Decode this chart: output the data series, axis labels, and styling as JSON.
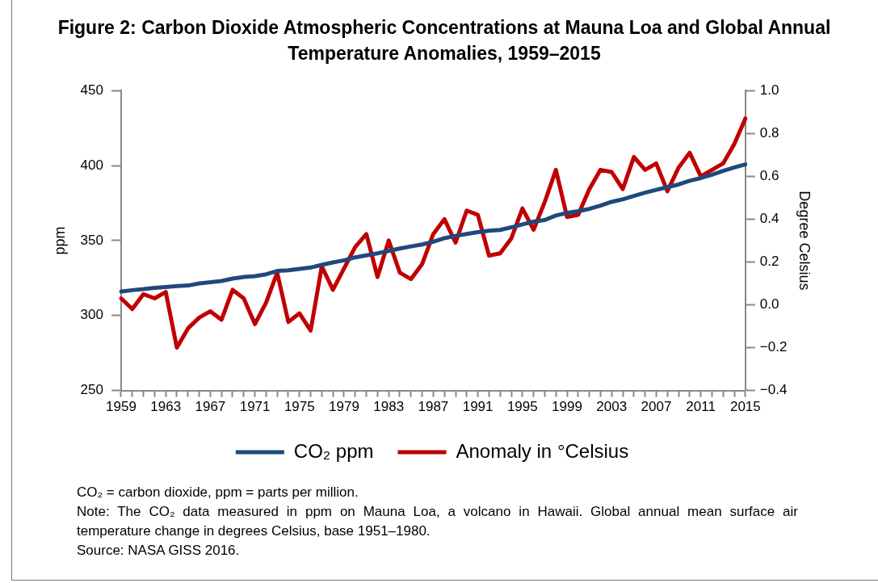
{
  "chart_data": {
    "type": "line",
    "title": "Figure 2: Carbon Dioxide Atmospheric Concentrations at Mauna Loa and Global Annual Temperature Anomalies, 1959–2015",
    "categories": [
      "1959",
      null,
      null,
      null,
      "1963",
      null,
      null,
      null,
      "1967",
      null,
      null,
      null,
      "1971",
      null,
      null,
      null,
      "1975",
      null,
      null,
      null,
      "1979",
      null,
      null,
      null,
      "1983",
      null,
      null,
      null,
      "1987",
      null,
      null,
      null,
      "1991",
      null,
      null,
      null,
      "1995",
      null,
      null,
      null,
      "1999",
      null,
      null,
      null,
      "2003",
      null,
      null,
      null,
      "2007",
      null,
      null,
      null,
      "2011",
      null,
      null,
      null,
      "2015"
    ],
    "series": [
      {
        "name": "CO₂ ppm",
        "color": "#1f497d",
        "values": [
          316.0,
          316.9,
          317.6,
          318.5,
          319.0,
          319.6,
          320.0,
          321.4,
          322.2,
          323.0,
          324.6,
          325.7,
          326.3,
          327.5,
          329.7,
          330.2,
          331.1,
          332.0,
          333.8,
          335.4,
          336.8,
          338.8,
          340.1,
          341.5,
          343.1,
          344.7,
          346.1,
          347.4,
          349.2,
          351.6,
          353.1,
          354.4,
          355.6,
          356.5,
          357.1,
          358.8,
          360.8,
          362.6,
          363.7,
          366.7,
          368.4,
          369.6,
          371.1,
          373.3,
          375.8,
          377.5,
          379.8,
          381.9,
          383.8,
          385.6,
          387.4,
          389.9,
          391.7,
          393.9,
          396.5,
          398.7,
          400.8
        ]
      },
      {
        "name": "Anomaly in °Celsius",
        "color": "#c00000",
        "axis": "y2",
        "values": [
          0.03,
          -0.02,
          0.05,
          0.03,
          0.06,
          -0.2,
          -0.11,
          -0.06,
          -0.03,
          -0.07,
          0.07,
          0.03,
          -0.09,
          0.01,
          0.15,
          -0.08,
          -0.04,
          -0.12,
          0.18,
          0.07,
          0.17,
          0.27,
          0.33,
          0.13,
          0.3,
          0.15,
          0.12,
          0.19,
          0.33,
          0.4,
          0.29,
          0.44,
          0.42,
          0.23,
          0.24,
          0.31,
          0.45,
          0.35,
          0.48,
          0.63,
          0.41,
          0.42,
          0.54,
          0.63,
          0.62,
          0.54,
          0.69,
          0.63,
          0.66,
          0.53,
          0.64,
          0.71,
          0.6,
          0.63,
          0.66,
          0.75,
          0.87
        ]
      }
    ],
    "ylabel": "ppm",
    "y2label": "Degree Celsius",
    "ylim": [
      250,
      450
    ],
    "yticks": [
      250,
      300,
      350,
      400,
      450
    ],
    "y2lim": [
      -0.4,
      1.0
    ],
    "y2ticks": [
      {
        "value": -0.4,
        "label": "−0.4"
      },
      {
        "value": -0.2,
        "label": "−0.2"
      },
      {
        "value": 0,
        "label": "0.0"
      },
      {
        "value": 0.2,
        "label": "0.2"
      },
      {
        "value": 0.4,
        "label": "0.4"
      },
      {
        "value": 0.6,
        "label": "0.6"
      },
      {
        "value": 0.8,
        "label": "0.8"
      },
      {
        "value": 1.0,
        "label": "1.0"
      }
    ],
    "legend": "bottom",
    "marker": "none",
    "line_style": "solid",
    "annotations": [
      "CO₂ = carbon dioxide, ppm = parts per million.",
      "Note: The CO₂ data measured in ppm on Mauna Loa, a volcano in Hawaii. Global annual mean surface air temperature change in degrees Celsius, base 1951–1980.",
      "Source: NASA GISS 2016."
    ]
  }
}
